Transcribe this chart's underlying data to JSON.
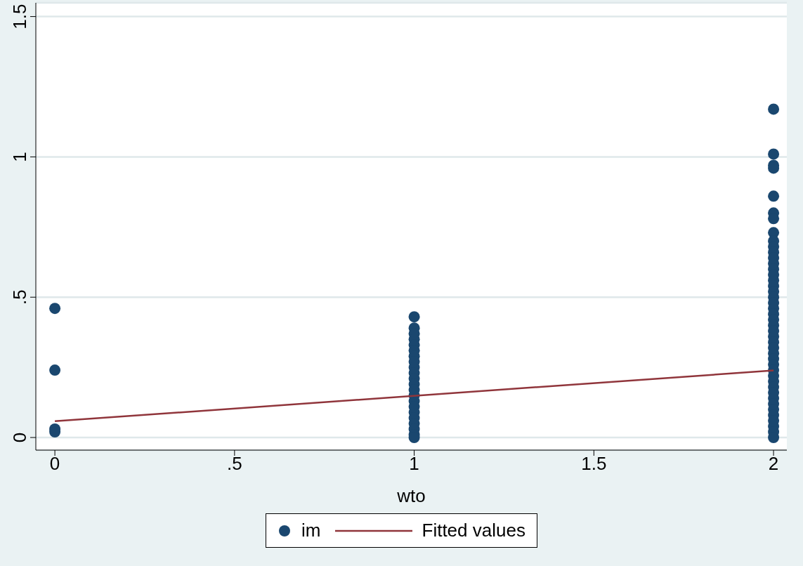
{
  "chart_data": {
    "type": "scatter",
    "xlabel": "wto",
    "xlim": [
      -0.053,
      2.037
    ],
    "ylim": [
      -0.045,
      1.549
    ],
    "xticks": [
      0,
      {
        "value": 0.5,
        "label": ".5"
      },
      1,
      1.5,
      2
    ],
    "yticks": [
      0,
      {
        "value": 0.5,
        "label": ".5"
      },
      1,
      1.5
    ],
    "grid": "y",
    "legend": "bottom",
    "series": [
      {
        "name": "im",
        "marker": "circle",
        "color": "#1a476f",
        "x": [
          0,
          0,
          0,
          0,
          1,
          1,
          1,
          1,
          1,
          1,
          1,
          1,
          1,
          1,
          1,
          1,
          1,
          1,
          1,
          1,
          1,
          1,
          1,
          1,
          1,
          1,
          2,
          2,
          2,
          2,
          2,
          2,
          2,
          2,
          2,
          2,
          2,
          2,
          2,
          2,
          2,
          2,
          2,
          2,
          2,
          2,
          2,
          2,
          2,
          2,
          2,
          2,
          2,
          2,
          2,
          2,
          2,
          2,
          2,
          2,
          2,
          2,
          2,
          2,
          2,
          2,
          2,
          2,
          2,
          2
        ],
        "values": [
          0.46,
          0.24,
          0.03,
          0.02,
          0.43,
          0.39,
          0.37,
          0.35,
          0.33,
          0.31,
          0.29,
          0.27,
          0.25,
          0.23,
          0.21,
          0.19,
          0.17,
          0.15,
          0.13,
          0.11,
          0.09,
          0.07,
          0.05,
          0.03,
          0.01,
          0,
          1.17,
          1.01,
          0.97,
          0.96,
          0.86,
          0.8,
          0.78,
          0.73,
          0.7,
          0.68,
          0.66,
          0.64,
          0.62,
          0.6,
          0.58,
          0.56,
          0.54,
          0.52,
          0.5,
          0.48,
          0.46,
          0.44,
          0.42,
          0.4,
          0.38,
          0.36,
          0.34,
          0.32,
          0.3,
          0.28,
          0.26,
          0.24,
          0.22,
          0.2,
          0.18,
          0.16,
          0.14,
          0.12,
          0.1,
          0.08,
          0.06,
          0.04,
          0.02,
          0
        ]
      },
      {
        "name": "Fitted values",
        "type": "line",
        "color": "#90353b",
        "line_style": "solid",
        "x": [
          0,
          2
        ],
        "values": [
          0.058,
          0.239
        ]
      }
    ]
  }
}
